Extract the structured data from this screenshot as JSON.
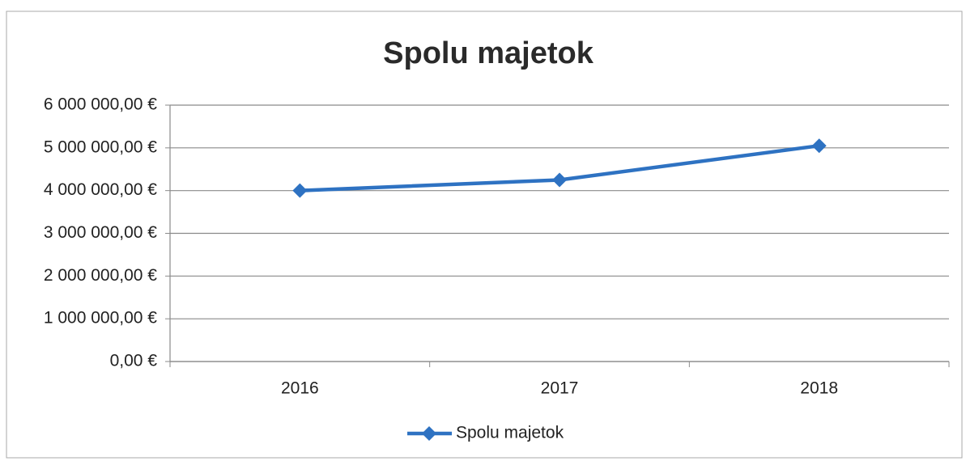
{
  "chart_data": {
    "type": "line",
    "title": "Spolu majetok",
    "categories": [
      "2016",
      "2017",
      "2018"
    ],
    "series": [
      {
        "name": "Spolu majetok",
        "color": "#2e72c2",
        "values": [
          4000000,
          4250000,
          5050000
        ]
      }
    ],
    "ylim": [
      0,
      6000000
    ],
    "yticks": [
      {
        "value": 0,
        "label": "0,00 €"
      },
      {
        "value": 1000000,
        "label": "1 000 000,00 €"
      },
      {
        "value": 2000000,
        "label": "2 000 000,00 €"
      },
      {
        "value": 3000000,
        "label": "3 000 000,00 €"
      },
      {
        "value": 4000000,
        "label": "4 000 000,00 €"
      },
      {
        "value": 5000000,
        "label": "5 000 000,00 €"
      },
      {
        "value": 6000000,
        "label": "6 000 000,00 €"
      }
    ],
    "grid": true,
    "legend": "bottom"
  }
}
